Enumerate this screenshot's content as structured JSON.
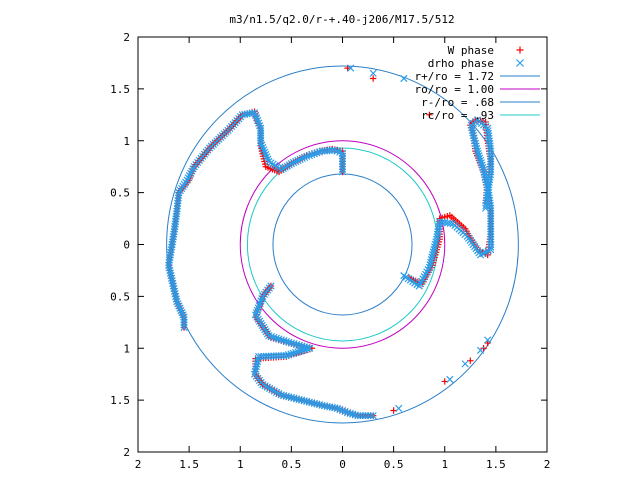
{
  "chart_data": {
    "type": "scatter",
    "title": "m3/n1.5/q2.0/r-+.40-j206/M17.5/512",
    "xlabel": "",
    "ylabel": "",
    "xlim": [
      -2,
      2
    ],
    "ylim": [
      -2,
      2
    ],
    "x_ticks": [
      -2,
      -1.5,
      -1,
      -0.5,
      0,
      0.5,
      1,
      1.5,
      2
    ],
    "y_ticks": [
      -2,
      -1.5,
      -1,
      -0.5,
      0,
      0.5,
      1,
      1.5,
      2
    ],
    "x_tick_labels": [
      "2",
      "1.5",
      "1",
      "0.5",
      "0",
      "0.5",
      "1",
      "1.5",
      "2"
    ],
    "y_tick_labels": [
      "2",
      "1.5",
      "1",
      "0.5",
      "0",
      "0.5",
      "1",
      "1.5",
      "2"
    ],
    "grid": false,
    "legend_position": "top-right",
    "series": [
      {
        "name": "W phase",
        "marker": "plus",
        "color": "#ff0000",
        "arms": [
          [
            [
              0.0,
              0.7
            ],
            [
              0.0,
              0.9
            ],
            [
              -0.1,
              0.92
            ],
            [
              -0.22,
              0.9
            ],
            [
              -0.35,
              0.86
            ],
            [
              -0.5,
              0.78
            ],
            [
              -0.62,
              0.7
            ],
            [
              -0.75,
              0.75
            ],
            [
              -0.8,
              0.95
            ],
            [
              -0.8,
              1.1
            ],
            [
              -0.86,
              1.28
            ],
            [
              -0.98,
              1.25
            ],
            [
              -1.1,
              1.12
            ],
            [
              -1.28,
              0.95
            ],
            [
              -1.45,
              0.75
            ],
            [
              -1.5,
              0.62
            ],
            [
              -1.6,
              0.5
            ],
            [
              -1.62,
              0.32
            ],
            [
              -1.65,
              0.1
            ],
            [
              -1.7,
              -0.2
            ],
            [
              -1.62,
              -0.55
            ],
            [
              -1.55,
              -0.7
            ],
            [
              -1.55,
              -0.8
            ]
          ],
          [
            [
              -0.7,
              -0.4
            ],
            [
              -0.78,
              -0.5
            ],
            [
              -0.85,
              -0.7
            ],
            [
              -0.7,
              -0.9
            ],
            [
              -0.45,
              -0.97
            ],
            [
              -0.3,
              -1.0
            ],
            [
              -0.55,
              -1.08
            ],
            [
              -0.85,
              -1.1
            ],
            [
              -0.85,
              -1.25
            ],
            [
              -0.78,
              -1.35
            ],
            [
              -0.6,
              -1.45
            ],
            [
              -0.4,
              -1.5
            ],
            [
              -0.2,
              -1.55
            ],
            [
              -0.05,
              -1.58
            ],
            [
              0.05,
              -1.62
            ],
            [
              0.15,
              -1.65
            ],
            [
              0.3,
              -1.65
            ]
          ],
          [
            [
              0.65,
              -0.32
            ],
            [
              0.78,
              -0.38
            ],
            [
              0.88,
              -0.2
            ],
            [
              0.95,
              0.05
            ],
            [
              0.95,
              0.25
            ],
            [
              1.05,
              0.28
            ],
            [
              1.2,
              0.15
            ],
            [
              1.32,
              -0.05
            ],
            [
              1.42,
              -0.1
            ],
            [
              1.45,
              0.1
            ],
            [
              1.45,
              0.3
            ],
            [
              1.42,
              0.5
            ],
            [
              1.38,
              0.7
            ],
            [
              1.3,
              0.9
            ],
            [
              1.28,
              1.05
            ],
            [
              1.25,
              1.15
            ],
            [
              1.3,
              1.2
            ],
            [
              1.4,
              1.18
            ],
            [
              1.42,
              1.0
            ],
            [
              1.45,
              0.8
            ],
            [
              1.42,
              0.6
            ],
            [
              1.4,
              0.4
            ]
          ],
          [
            [
              1.42,
              -0.95
            ],
            [
              1.38,
              -1.0
            ],
            [
              1.25,
              -1.12
            ],
            [
              1.0,
              -1.32
            ],
            [
              0.5,
              -1.6
            ],
            [
              0.85,
              1.25
            ],
            [
              0.3,
              1.6
            ],
            [
              0.05,
              1.7
            ]
          ]
        ]
      },
      {
        "name": "drho phase",
        "marker": "cross",
        "color": "#2a9de8",
        "arms": [
          [
            [
              0.0,
              0.7
            ],
            [
              0.0,
              0.88
            ],
            [
              -0.08,
              0.91
            ],
            [
              -0.2,
              0.9
            ],
            [
              -0.35,
              0.85
            ],
            [
              -0.5,
              0.78
            ],
            [
              -0.6,
              0.72
            ],
            [
              -0.72,
              0.8
            ],
            [
              -0.8,
              0.98
            ],
            [
              -0.8,
              1.12
            ],
            [
              -0.86,
              1.27
            ],
            [
              -0.98,
              1.25
            ],
            [
              -1.12,
              1.1
            ],
            [
              -1.3,
              0.93
            ],
            [
              -1.45,
              0.75
            ],
            [
              -1.52,
              0.62
            ],
            [
              -1.6,
              0.5
            ],
            [
              -1.62,
              0.32
            ],
            [
              -1.65,
              0.1
            ],
            [
              -1.7,
              -0.2
            ],
            [
              -1.62,
              -0.55
            ],
            [
              -1.55,
              -0.7
            ],
            [
              -1.55,
              -0.8
            ]
          ],
          [
            [
              -0.7,
              -0.4
            ],
            [
              -0.78,
              -0.5
            ],
            [
              -0.85,
              -0.68
            ],
            [
              -0.72,
              -0.88
            ],
            [
              -0.5,
              -0.95
            ],
            [
              -0.32,
              -1.0
            ],
            [
              -0.55,
              -1.07
            ],
            [
              -0.82,
              -1.08
            ],
            [
              -0.86,
              -1.25
            ],
            [
              -0.78,
              -1.35
            ],
            [
              -0.6,
              -1.45
            ],
            [
              -0.4,
              -1.5
            ],
            [
              -0.2,
              -1.55
            ],
            [
              -0.05,
              -1.58
            ],
            [
              0.05,
              -1.62
            ],
            [
              0.15,
              -1.65
            ],
            [
              0.3,
              -1.65
            ]
          ],
          [
            [
              0.6,
              -0.3
            ],
            [
              0.75,
              -0.4
            ],
            [
              0.85,
              -0.22
            ],
            [
              0.92,
              0.05
            ],
            [
              0.95,
              0.22
            ],
            [
              1.08,
              0.2
            ],
            [
              1.22,
              0.08
            ],
            [
              1.35,
              -0.1
            ],
            [
              1.45,
              -0.05
            ],
            [
              1.45,
              0.15
            ],
            [
              1.45,
              0.35
            ],
            [
              1.42,
              0.55
            ],
            [
              1.38,
              0.72
            ],
            [
              1.32,
              0.9
            ],
            [
              1.28,
              1.05
            ],
            [
              1.26,
              1.15
            ],
            [
              1.32,
              1.2
            ],
            [
              1.42,
              1.12
            ],
            [
              1.45,
              0.9
            ],
            [
              1.45,
              0.7
            ],
            [
              1.42,
              0.5
            ],
            [
              1.4,
              0.35
            ]
          ],
          [
            [
              1.42,
              -0.92
            ],
            [
              1.35,
              -1.02
            ],
            [
              1.2,
              -1.15
            ],
            [
              1.05,
              -1.3
            ],
            [
              0.55,
              -1.58
            ],
            [
              0.6,
              1.6
            ],
            [
              0.3,
              1.65
            ],
            [
              0.08,
              1.7
            ]
          ]
        ]
      },
      {
        "name": "r+/ro = 1.72",
        "type": "circle",
        "radius": 1.72,
        "color": "#2a7ec8"
      },
      {
        "name": "ro/ro = 1.00",
        "type": "circle",
        "radius": 1.0,
        "color": "#c000c0"
      },
      {
        "name": "r-/ro = .68",
        "type": "circle",
        "radius": 0.68,
        "color": "#2a7ec8"
      },
      {
        "name": "rc/ro = .93",
        "type": "circle",
        "radius": 0.93,
        "color": "#20c8c8"
      }
    ]
  }
}
